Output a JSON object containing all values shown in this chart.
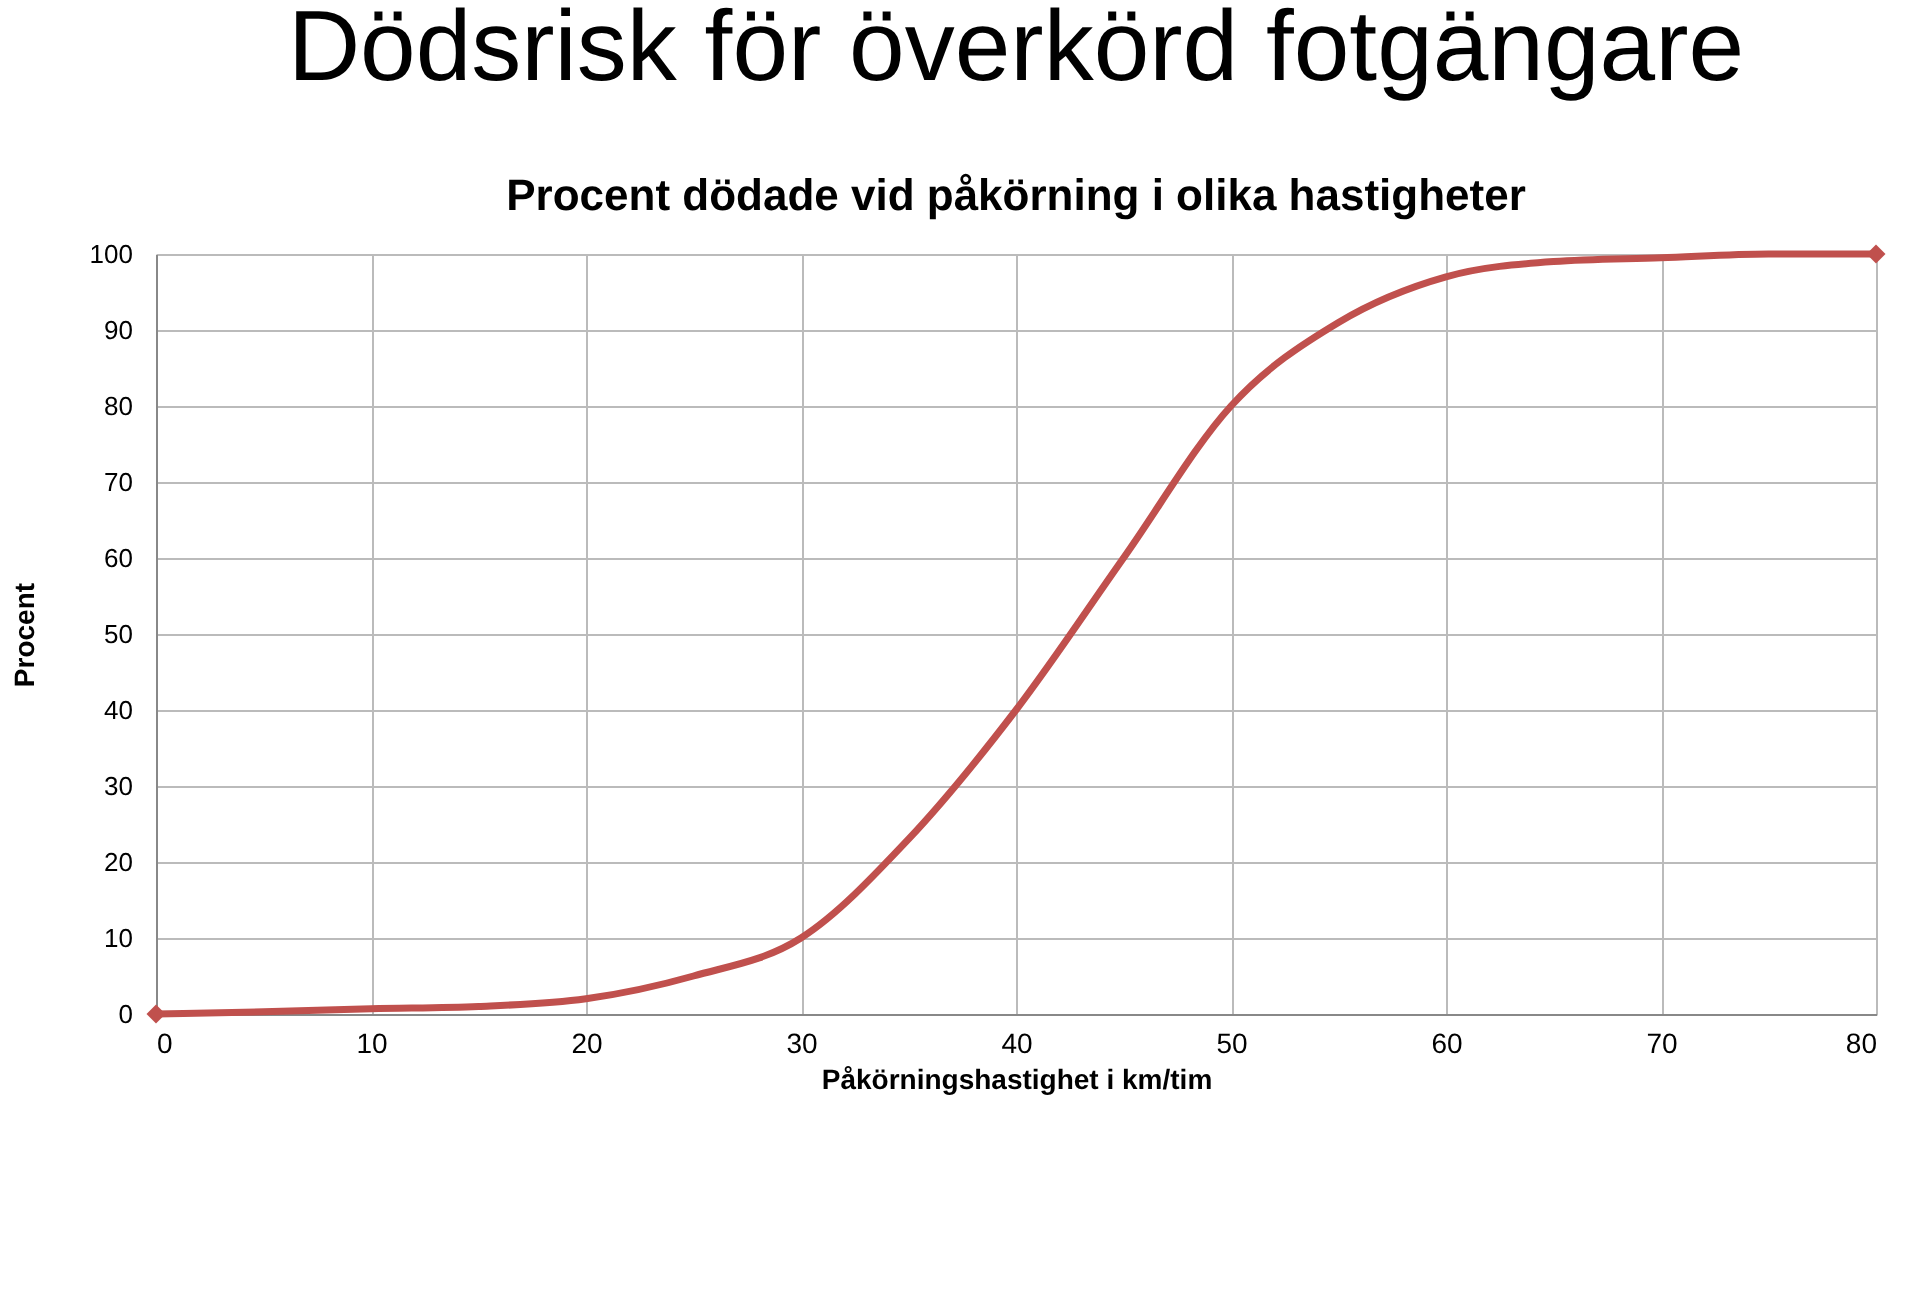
{
  "chart_data": {
    "type": "line",
    "title": "Dödsrisk för överkörd fotgängare",
    "subtitle": "Procent dödade vid påkörning i olika hastigheter",
    "xlabel": "Påkörningshastighet i km/tim",
    "ylabel": "Procent",
    "xlim": [
      0,
      80
    ],
    "xticks": [
      0,
      10,
      20,
      30,
      40,
      50,
      60,
      70,
      80
    ],
    "ylim": [
      0,
      100
    ],
    "yticks": [
      0,
      10,
      20,
      30,
      40,
      50,
      60,
      70,
      80,
      90,
      100
    ],
    "grid": true,
    "series": [
      {
        "type": "line",
        "color": "#c0504d",
        "marker": "none",
        "x": [
          0,
          5,
          10,
          15,
          20,
          25,
          30,
          35,
          40,
          45,
          50,
          55,
          60,
          65,
          70,
          75,
          80
        ],
        "values": [
          0,
          0.3,
          0.7,
          1,
          2,
          5,
          10,
          23,
          40,
          60,
          80,
          91,
          97,
          99,
          99.5,
          100,
          100
        ]
      },
      {
        "type": "scatter",
        "color": "#c0504d",
        "marker": "diamond",
        "x": [
          0,
          80
        ],
        "values": [
          0,
          100
        ]
      }
    ]
  }
}
